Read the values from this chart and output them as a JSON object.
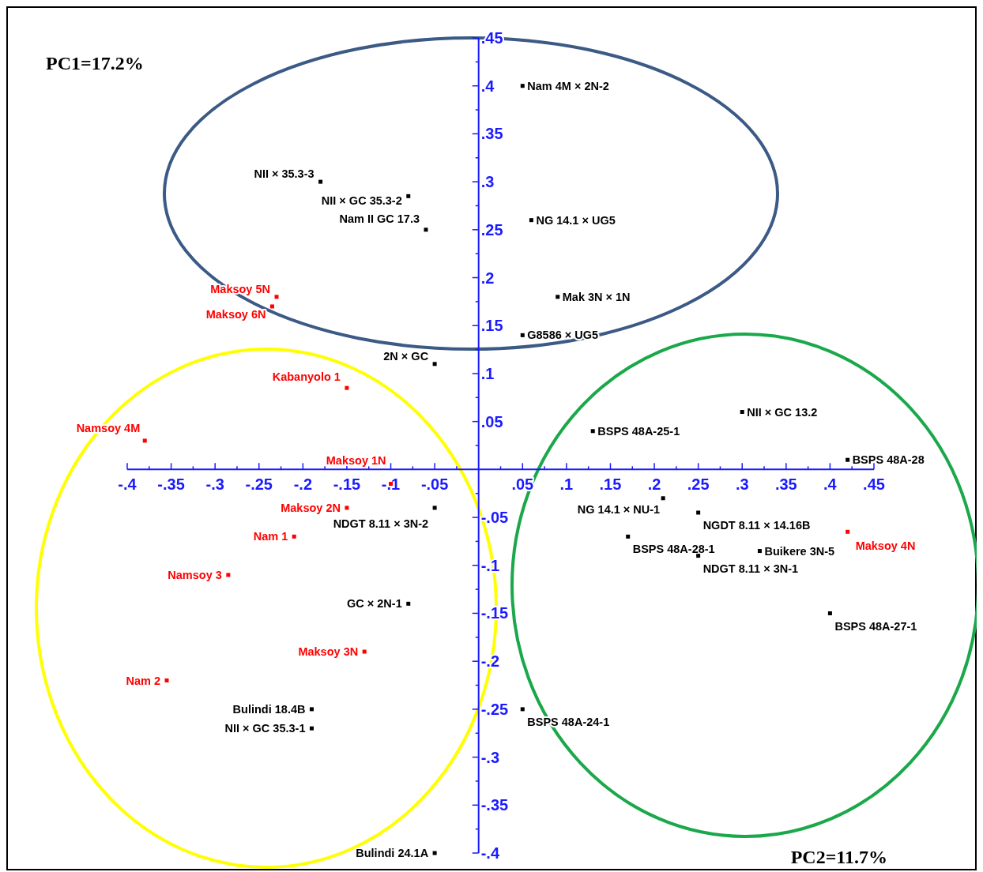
{
  "chart_data": {
    "type": "scatter",
    "marker": "square",
    "xlim": [
      -0.4,
      0.45
    ],
    "ylim": [
      -0.4,
      0.45
    ],
    "xticks": [
      {
        "value": -0.4,
        "label": "-.4"
      },
      {
        "value": -0.375,
        "label": null
      },
      {
        "value": -0.35,
        "label": "-.35"
      },
      {
        "value": -0.325,
        "label": null
      },
      {
        "value": -0.3,
        "label": "-.3"
      },
      {
        "value": -0.275,
        "label": null
      },
      {
        "value": -0.25,
        "label": "-.25"
      },
      {
        "value": -0.225,
        "label": null
      },
      {
        "value": -0.2,
        "label": "-.2"
      },
      {
        "value": -0.175,
        "label": null
      },
      {
        "value": -0.15,
        "label": "-.15"
      },
      {
        "value": -0.125,
        "label": null
      },
      {
        "value": -0.1,
        "label": "-.1"
      },
      {
        "value": -0.075,
        "label": null
      },
      {
        "value": -0.05,
        "label": "-.05"
      },
      {
        "value": -0.025,
        "label": null
      },
      {
        "value": 0.025,
        "label": null
      },
      {
        "value": 0.05,
        "label": ".05"
      },
      {
        "value": 0.075,
        "label": null
      },
      {
        "value": 0.1,
        "label": ".1"
      },
      {
        "value": 0.125,
        "label": null
      },
      {
        "value": 0.15,
        "label": ".15"
      },
      {
        "value": 0.175,
        "label": null
      },
      {
        "value": 0.2,
        "label": ".2"
      },
      {
        "value": 0.225,
        "label": null
      },
      {
        "value": 0.25,
        "label": ".25"
      },
      {
        "value": 0.275,
        "label": null
      },
      {
        "value": 0.3,
        "label": ".3"
      },
      {
        "value": 0.325,
        "label": null
      },
      {
        "value": 0.35,
        "label": ".35"
      },
      {
        "value": 0.375,
        "label": null
      },
      {
        "value": 0.4,
        "label": ".4"
      },
      {
        "value": 0.425,
        "label": null
      },
      {
        "value": 0.45,
        "label": ".45"
      }
    ],
    "yticks": [
      {
        "value": -0.4,
        "label": "-.4"
      },
      {
        "value": -0.375,
        "label": null
      },
      {
        "value": -0.35,
        "label": "-.35"
      },
      {
        "value": -0.325,
        "label": null
      },
      {
        "value": -0.3,
        "label": "-.3"
      },
      {
        "value": -0.275,
        "label": null
      },
      {
        "value": -0.25,
        "label": "-.25"
      },
      {
        "value": -0.225,
        "label": null
      },
      {
        "value": -0.2,
        "label": "-.2"
      },
      {
        "value": -0.175,
        "label": null
      },
      {
        "value": -0.15,
        "label": "-.15"
      },
      {
        "value": -0.125,
        "label": null
      },
      {
        "value": -0.1,
        "label": "-.1"
      },
      {
        "value": -0.075,
        "label": null
      },
      {
        "value": -0.05,
        "label": "-.05"
      },
      {
        "value": -0.025,
        "label": null
      },
      {
        "value": 0.025,
        "label": null
      },
      {
        "value": 0.05,
        "label": ".05"
      },
      {
        "value": 0.075,
        "label": null
      },
      {
        "value": 0.1,
        "label": ".1"
      },
      {
        "value": 0.125,
        "label": null
      },
      {
        "value": 0.15,
        "label": ".15"
      },
      {
        "value": 0.175,
        "label": null
      },
      {
        "value": 0.2,
        "label": ".2"
      },
      {
        "value": 0.225,
        "label": null
      },
      {
        "value": 0.25,
        "label": ".25"
      },
      {
        "value": 0.275,
        "label": null
      },
      {
        "value": 0.3,
        "label": ".3"
      },
      {
        "value": 0.325,
        "label": null
      },
      {
        "value": 0.35,
        "label": ".35"
      },
      {
        "value": 0.375,
        "label": null
      },
      {
        "value": 0.4,
        "label": ".4"
      },
      {
        "value": 0.425,
        "label": null
      },
      {
        "value": 0.45,
        "label": ".45"
      }
    ],
    "series": [
      {
        "color": "#000000",
        "x": [
          0.05,
          0.06,
          0.09,
          0.05,
          -0.18,
          -0.08,
          -0.06,
          -0.05,
          0.3,
          0.13,
          0.42,
          0.21,
          0.25,
          0.17,
          0.25,
          0.32,
          0.4,
          0.05,
          -0.05,
          -0.08,
          -0.19,
          -0.19,
          -0.05
        ],
        "values": [
          0.4,
          0.26,
          0.18,
          0.14,
          0.3,
          0.285,
          0.25,
          0.11,
          0.06,
          0.04,
          0.01,
          -0.03,
          -0.045,
          -0.07,
          -0.09,
          -0.085,
          -0.15,
          -0.25,
          -0.04,
          -0.14,
          -0.25,
          -0.27,
          -0.4
        ]
      },
      {
        "color": "#ff0000",
        "x": [
          -0.23,
          -0.235,
          -0.15,
          -0.38,
          -0.1,
          -0.15,
          -0.21,
          -0.285,
          -0.13,
          -0.355,
          0.42
        ],
        "values": [
          0.18,
          0.17,
          0.085,
          0.03,
          -0.015,
          -0.04,
          -0.07,
          -0.11,
          -0.19,
          -0.22,
          -0.065
        ]
      }
    ],
    "annotations": [
      "PC1=17.2%",
      "PC2=11.7%",
      {
        "text": "Nam 4M × 2N-2",
        "x": 0.05,
        "y": 0.4
      },
      {
        "text": "NG 14.1 × UG5",
        "x": 0.06,
        "y": 0.26
      },
      {
        "text": "Mak 3N × 1N",
        "x": 0.09,
        "y": 0.18
      },
      {
        "text": "G8586 × UG5",
        "x": 0.05,
        "y": 0.14
      },
      {
        "text": "NII × 35.3-3",
        "x": -0.18,
        "y": 0.3
      },
      {
        "text": "NII × GC 35.3-2",
        "x": -0.08,
        "y": 0.285
      },
      {
        "text": "Nam II GC 17.3",
        "x": -0.06,
        "y": 0.25
      },
      {
        "text": "2N × GC",
        "x": -0.05,
        "y": 0.11
      },
      {
        "text": "NII × GC 13.2",
        "x": 0.3,
        "y": 0.06
      },
      {
        "text": "BSPS 48A-25-1",
        "x": 0.13,
        "y": 0.04
      },
      {
        "text": "BSPS 48A-28",
        "x": 0.42,
        "y": 0.01
      },
      {
        "text": "NG 14.1 × NU-1",
        "x": 0.21,
        "y": -0.03
      },
      {
        "text": "NGDT 8.11 × 14.16B",
        "x": 0.25,
        "y": -0.045
      },
      {
        "text": "BSPS 48A-28-1",
        "x": 0.17,
        "y": -0.07
      },
      {
        "text": "NDGT 8.11 × 3N-1",
        "x": 0.25,
        "y": -0.09
      },
      {
        "text": "Buikere 3N-5",
        "x": 0.32,
        "y": -0.085
      },
      {
        "text": "BSPS 48A-27-1",
        "x": 0.4,
        "y": -0.15
      },
      {
        "text": "BSPS 48A-24-1",
        "x": 0.05,
        "y": -0.25
      },
      {
        "text": "NDGT 8.11 × 3N-2",
        "x": -0.05,
        "y": -0.04
      },
      {
        "text": "GC × 2N-1",
        "x": -0.08,
        "y": -0.14
      },
      {
        "text": "Bulindi 18.4B",
        "x": -0.19,
        "y": -0.25
      },
      {
        "text": "NII × GC 35.3-1",
        "x": -0.19,
        "y": -0.27
      },
      {
        "text": "Bulindi 24.1A",
        "x": -0.05,
        "y": -0.4
      },
      {
        "text": "Maksoy 5N",
        "x": -0.23,
        "y": 0.18
      },
      {
        "text": "Maksoy 6N",
        "x": -0.235,
        "y": 0.17
      },
      {
        "text": "Kabanyolo 1",
        "x": -0.15,
        "y": 0.085
      },
      {
        "text": "Namsoy 4M",
        "x": -0.38,
        "y": 0.03
      },
      {
        "text": "Maksoy 1N",
        "x": -0.1,
        "y": -0.015
      },
      {
        "text": "Maksoy 2N",
        "x": -0.15,
        "y": -0.04
      },
      {
        "text": "Nam 1",
        "x": -0.21,
        "y": -0.07
      },
      {
        "text": "Namsoy 3",
        "x": -0.285,
        "y": -0.11
      },
      {
        "text": "Maksoy 3N",
        "x": -0.13,
        "y": -0.19
      },
      {
        "text": "Nam 2",
        "x": -0.355,
        "y": -0.22
      },
      {
        "text": "Maksoy 4N",
        "x": 0.42,
        "y": -0.065
      }
    ]
  }
}
